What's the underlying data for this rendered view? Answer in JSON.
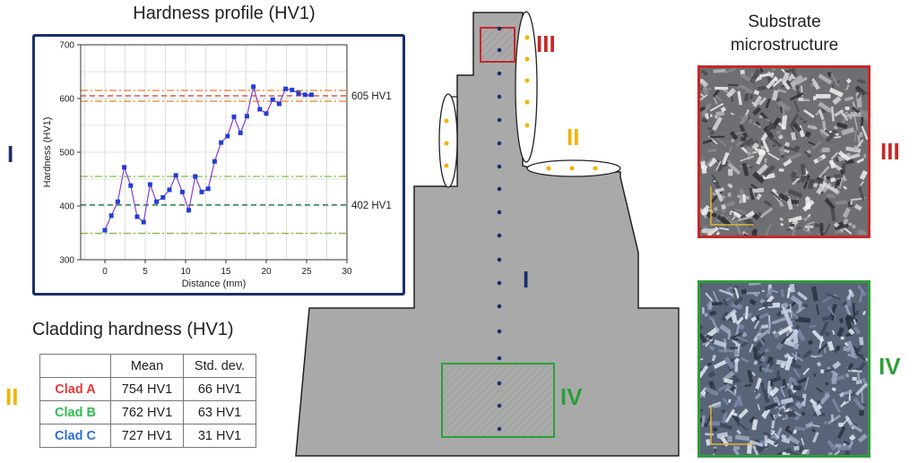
{
  "chart_data": {
    "type": "line",
    "title": "Hardness profile (HV1)",
    "xlabel": "Distance (mm)",
    "ylabel": "Hardness (HV1)",
    "xlim": [
      -3,
      30
    ],
    "ylim": [
      300,
      700
    ],
    "xticks": [
      0,
      5,
      10,
      15,
      20,
      25,
      30
    ],
    "yticks": [
      300,
      400,
      500,
      600,
      700
    ],
    "series": [
      {
        "name": "Hardness",
        "x": [
          0,
          0.8,
          1.6,
          2.4,
          3.2,
          4.0,
          4.8,
          5.6,
          6.4,
          7.2,
          8.0,
          8.8,
          9.6,
          10.4,
          11.2,
          12.0,
          12.8,
          13.6,
          14.4,
          15.2,
          16.0,
          16.8,
          17.6,
          18.4,
          19.2,
          20.0,
          20.8,
          21.6,
          22.4,
          23.2,
          24.0,
          24.8,
          25.6
        ],
        "y": [
          355,
          382,
          408,
          472,
          438,
          380,
          370,
          440,
          408,
          416,
          430,
          457,
          426,
          392,
          455,
          426,
          432,
          483,
          518,
          530,
          566,
          536,
          567,
          622,
          580,
          572,
          598,
          590,
          618,
          616,
          610,
          607,
          607
        ]
      }
    ],
    "reference_lines": [
      {
        "value": 605,
        "label": "605 HV1",
        "color": "#c0392b",
        "style": "dashed"
      },
      {
        "value": 615,
        "label": "",
        "color": "#e67e22",
        "style": "dashdot"
      },
      {
        "value": 595,
        "label": "",
        "color": "#e67e22",
        "style": "dashdot"
      },
      {
        "value": 402,
        "label": "402 HV1",
        "color": "#1e7b3a",
        "style": "dashed"
      },
      {
        "value": 455,
        "label": "",
        "color": "#7cbf3a",
        "style": "dashdot"
      },
      {
        "value": 349,
        "label": "",
        "color": "#7cbf3a",
        "style": "dashdot"
      }
    ],
    "marker_color": "#1f3ed6",
    "line_color": "#8a3ec8"
  },
  "labels": {
    "hardness_title": "Hardness profile (HV1)",
    "substrate_title_line1": "Substrate",
    "substrate_title_line2": "microstructure",
    "cladding_title": "Cladding hardness (HV1)",
    "roman_I": "I",
    "roman_II": "II",
    "roman_III": "III",
    "roman_IV": "IV"
  },
  "colors": {
    "navy": "#1a2f6b",
    "red": "#c62828",
    "green": "#2e9e3a",
    "gold": "#f0b400",
    "part_gray": "#a9a9a9"
  },
  "cladding_table": {
    "header": [
      "",
      "Mean",
      "Std. dev."
    ],
    "rows": [
      {
        "name": "Clad A",
        "color": "#e53935",
        "mean": "754 HV1",
        "std": "66 HV1"
      },
      {
        "name": "Clad B",
        "color": "#2ebd4e",
        "mean": "762 HV1",
        "std": "63 HV1"
      },
      {
        "name": "Clad C",
        "color": "#2f6fd6",
        "mean": "727 HV1",
        "std": "31 HV1"
      }
    ]
  }
}
